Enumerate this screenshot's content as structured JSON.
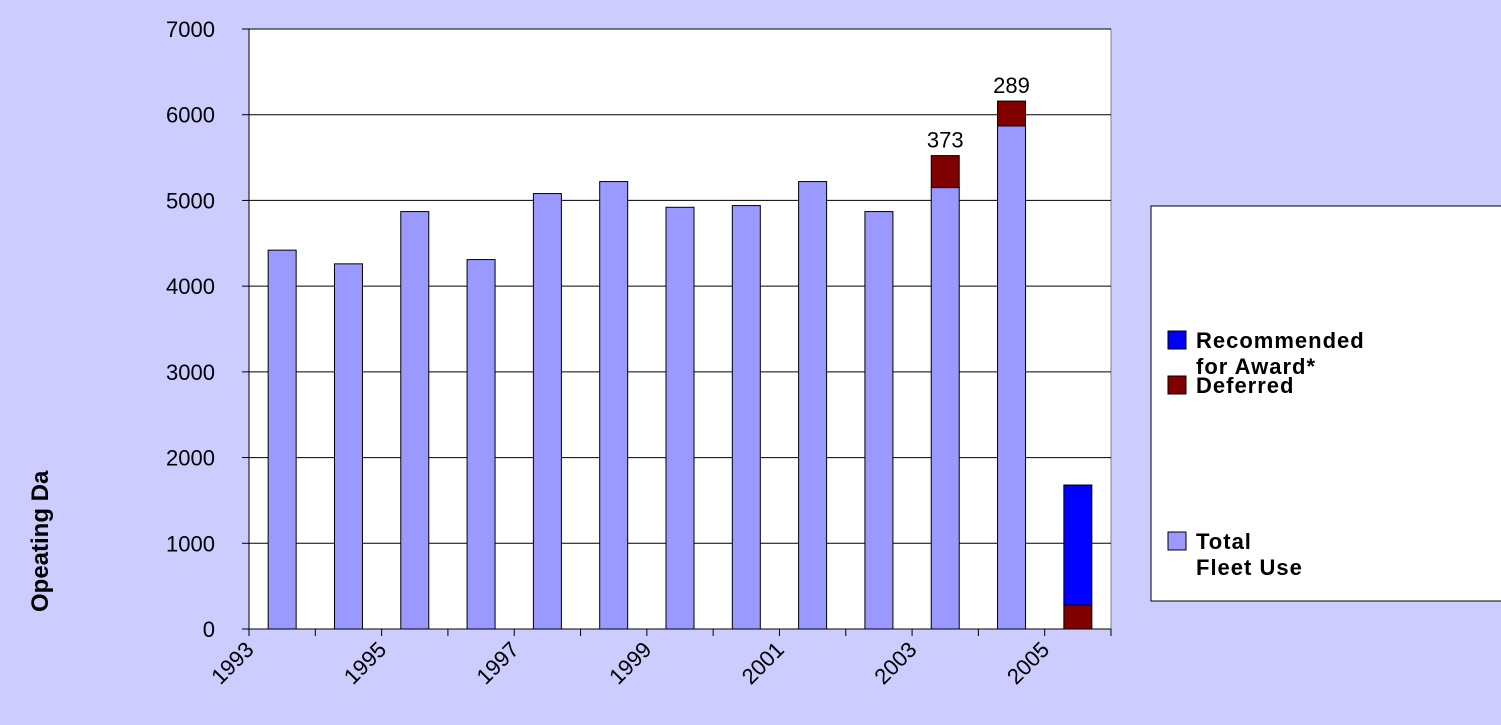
{
  "chart_data": {
    "type": "stacked_bar",
    "y_label": "Opeating Da",
    "categories": [
      "1993",
      null,
      "1995",
      null,
      "1997",
      null,
      "1999",
      null,
      "2001",
      null,
      "2003",
      null,
      "2005"
    ],
    "series": [
      {
        "name": "Total Fleet Use",
        "color": "#9999ff",
        "values": [
          4420,
          4260,
          4870,
          4310,
          5080,
          5220,
          4920,
          4940,
          5220,
          4870,
          5150,
          5870,
          null
        ]
      },
      {
        "name": "Deferred",
        "color": "#800000",
        "values": [
          null,
          null,
          null,
          null,
          null,
          null,
          null,
          null,
          null,
          null,
          373,
          289,
          280
        ],
        "value_labels": [
          null,
          null,
          null,
          null,
          null,
          null,
          null,
          null,
          null,
          null,
          "373",
          "289",
          null
        ]
      },
      {
        "name": "Recommended for Award*",
        "color": "#0000ff",
        "values": [
          null,
          null,
          null,
          null,
          null,
          null,
          null,
          null,
          null,
          null,
          null,
          null,
          1400
        ]
      }
    ],
    "ylim": [
      0,
      7000
    ],
    "yticks": [
      0,
      1000,
      2000,
      3000,
      4000,
      5000,
      6000,
      7000
    ],
    "grid": true,
    "legend": "right"
  }
}
